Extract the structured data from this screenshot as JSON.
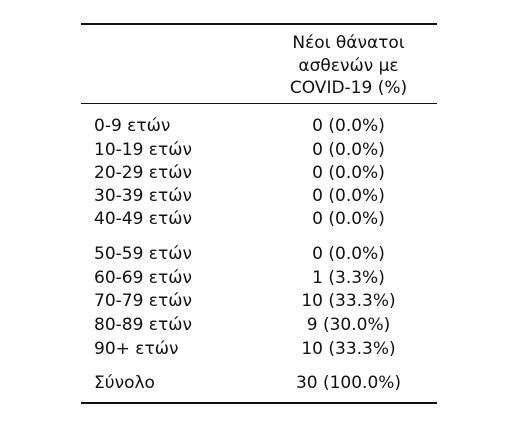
{
  "table": {
    "header": {
      "col2_line1": "Νέοι θάνατοι",
      "col2_line2": "ασθενών με",
      "col2_line3": "COVID-19 (%)"
    },
    "rows": [
      {
        "label": "0-9 ετών",
        "value": "0 (0.0%)"
      },
      {
        "label": "10-19 ετών",
        "value": "0 (0.0%)"
      },
      {
        "label": "20-29 ετών",
        "value": "0 (0.0%)"
      },
      {
        "label": "30-39 ετών",
        "value": "0 (0.0%)"
      },
      {
        "label": "40-49 ετών",
        "value": "0 (0.0%)"
      },
      {
        "label": "50-59 ετών",
        "value": "0 (0.0%)"
      },
      {
        "label": "60-69 ετών",
        "value": "1 (3.3%)"
      },
      {
        "label": "70-79 ετών",
        "value": "10 (33.3%)"
      },
      {
        "label": "80-89 ετών",
        "value": "9 (30.0%)"
      },
      {
        "label": "90+ ετών",
        "value": "10 (33.3%)"
      }
    ],
    "total": {
      "label": "Σύνολο",
      "value": "30 (100.0%)"
    }
  }
}
